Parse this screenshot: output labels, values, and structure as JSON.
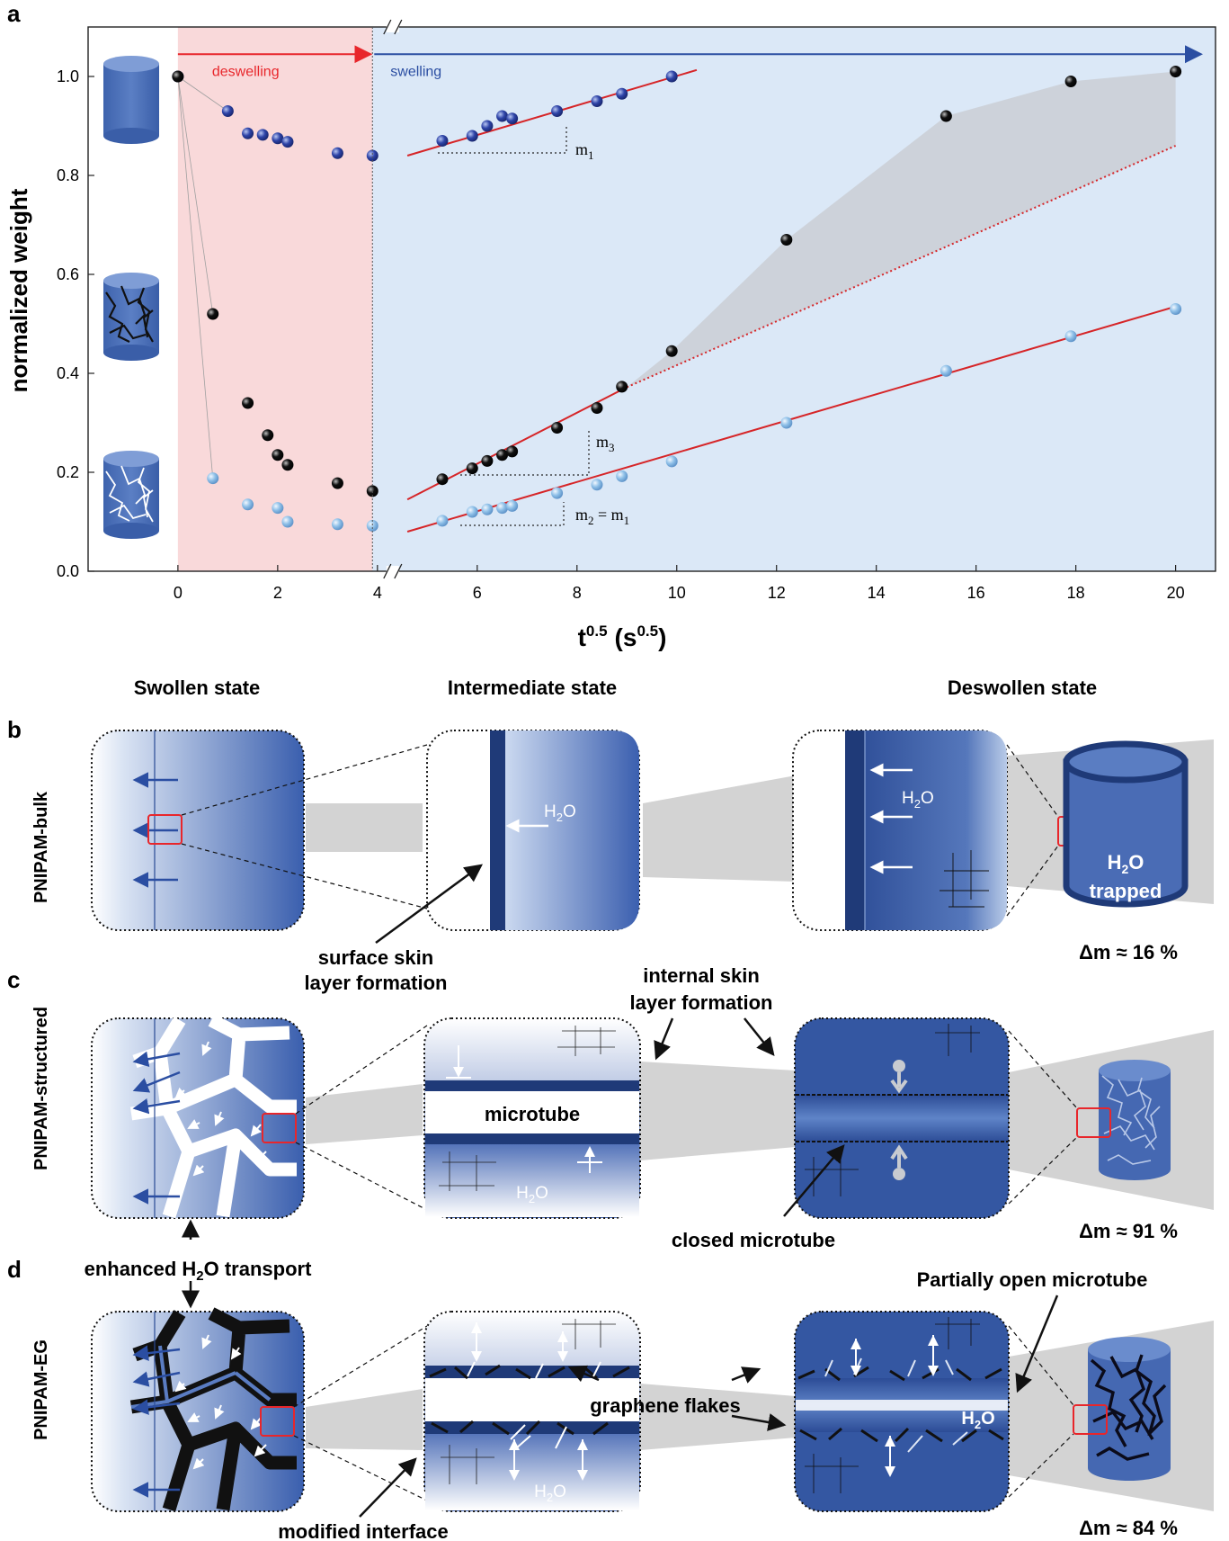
{
  "panel_letters": {
    "a": "a",
    "b": "b",
    "c": "c",
    "d": "d"
  },
  "chart_data": {
    "type": "scatter",
    "xlabel_base": "t",
    "xlabel_exp": "0.5",
    "xlabel_unit": "(s",
    "xlabel_unit_exp": "0.5",
    "xlabel_close": ")",
    "ylabel": "normalized weight",
    "xlim": [
      -1.8,
      20.8
    ],
    "ylim": [
      0,
      1.1
    ],
    "axis_break_at": 4,
    "xticks": [
      0,
      2,
      4,
      6,
      8,
      10,
      12,
      14,
      16,
      18,
      20
    ],
    "yticks": [
      "0.0",
      "0.2",
      "0.4",
      "0.6",
      "0.8",
      "1.0"
    ],
    "ytick_values": [
      0,
      0.2,
      0.4,
      0.6,
      0.8,
      1.0
    ],
    "regions": [
      {
        "label": "deswelling",
        "from": 0,
        "to": 3.9,
        "color": "#f9d9da",
        "arrow_color": "#e8262b"
      },
      {
        "label": "swelling",
        "from": 3.9,
        "to": 20.8,
        "color": "#dbe8f7",
        "arrow_color": "#2b4ea2"
      }
    ],
    "series": [
      {
        "color": "#2b3d9e",
        "x": [
          0,
          1,
          1.4,
          1.7,
          2,
          2.2,
          3.2,
          3.9,
          5.3,
          5.9,
          6.2,
          6.5,
          6.7,
          7.6,
          8.4,
          8.9,
          9.9
        ],
        "y": [
          1.0,
          0.93,
          0.885,
          0.882,
          0.875,
          0.868,
          0.845,
          0.84,
          0.87,
          0.88,
          0.9,
          0.92,
          0.915,
          0.93,
          0.95,
          0.965,
          1.0
        ]
      },
      {
        "color": "#111111",
        "x": [
          0,
          0.7,
          1.4,
          1.8,
          2,
          2.2,
          3.2,
          3.9,
          5.3,
          5.9,
          6.2,
          6.5,
          6.7,
          7.6,
          8.4,
          8.9,
          9.9,
          12.2,
          15.4,
          17.9,
          20
        ],
        "y": [
          1.0,
          0.52,
          0.34,
          0.275,
          0.235,
          0.215,
          0.178,
          0.162,
          0.186,
          0.208,
          0.223,
          0.235,
          0.242,
          0.29,
          0.33,
          0.373,
          0.445,
          0.67,
          0.92,
          0.99,
          1.01
        ]
      },
      {
        "color": "#8fc0e8",
        "x": [
          0.7,
          1.4,
          2,
          2.2,
          3.2,
          3.9,
          5.3,
          5.9,
          6.2,
          6.5,
          6.7,
          7.6,
          8.4,
          8.9,
          9.9,
          12.2,
          15.4,
          17.9,
          20
        ],
        "y": [
          0.188,
          0.135,
          0.128,
          0.1,
          0.095,
          0.092,
          0.102,
          0.12,
          0.125,
          0.128,
          0.132,
          0.158,
          0.175,
          0.192,
          0.222,
          0.3,
          0.405,
          0.475,
          0.53
        ]
      }
    ],
    "fit_lines": [
      {
        "label": "m1",
        "x": [
          4.6,
          10.4
        ],
        "y": [
          0.84,
          1.013
        ]
      },
      {
        "label": "m3",
        "x": [
          4.6,
          9.0
        ],
        "y": [
          0.145,
          0.372
        ]
      },
      {
        "label": "m3-extrapolated",
        "x": [
          9.0,
          20
        ],
        "y": [
          0.372,
          0.86
        ]
      },
      {
        "label": "m2",
        "x": [
          4.6,
          20
        ],
        "y": [
          0.08,
          0.535
        ]
      }
    ],
    "annotations": {
      "m1": "m",
      "m1_sub": "1",
      "m3": "m",
      "m3_sub": "3",
      "m2": "m",
      "m2_sub": "2",
      "m2_eq": " = m",
      "m2_eq_sub": "1"
    }
  },
  "diagram": {
    "column_headers": [
      "Swollen state",
      "Intermediate state",
      "Deswollen state"
    ],
    "row_labels": [
      "PNIPAM-bulk",
      "PNIPAM-structured",
      "PNIPAM-EG"
    ],
    "row_b": {
      "h2o": "H",
      "h2o_sub": "2",
      "h2o_o": "O",
      "trapped_line1_a": "H",
      "trapped_line1_sub": "2",
      "trapped_line1_b": "O",
      "trapped_line2": "trapped",
      "note_line1": "surface skin",
      "note_line2": "layer formation",
      "delta": "Δm ≈ 16 %"
    },
    "row_c": {
      "microtube": "microtube",
      "h2o": "H",
      "h2o_sub": "2",
      "h2o_o": "O",
      "internal_line1": "internal skin",
      "internal_line2": "layer formation",
      "closed": "closed microtube",
      "delta": "Δm ≈ 91 %",
      "transport_a": "enhanced H",
      "transport_sub": "2",
      "transport_b": "O transport"
    },
    "row_d": {
      "partial": "Partially open microtube",
      "graphene": "graphene flakes",
      "h2o": "H",
      "h2o_sub": "2",
      "h2o_o": "O",
      "h2o_bold": "H",
      "h2o_bold_sub": "2",
      "h2o_bold_o": "O",
      "modified": "modified interface",
      "delta": "Δm ≈ 84 %"
    }
  }
}
